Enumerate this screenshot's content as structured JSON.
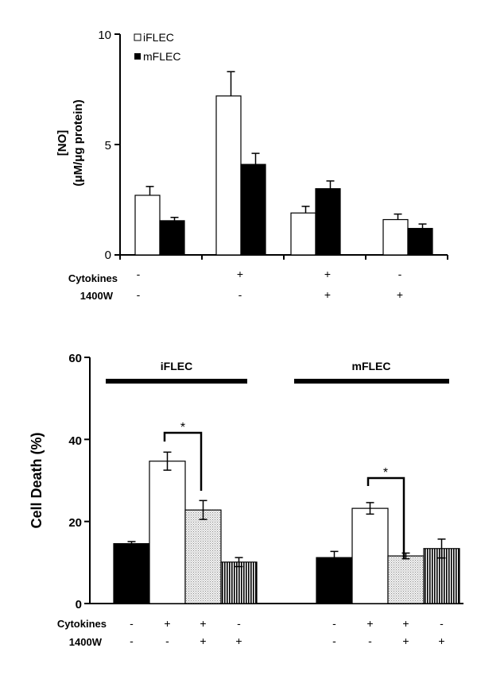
{
  "chart_data": [
    {
      "type": "bar",
      "ylabel": "[NO]",
      "ylabel_units": "(μM/μg protein)",
      "ylim": [
        0,
        10
      ],
      "yticks": [
        "0",
        "5",
        "10"
      ],
      "legend": {
        "placement": "top-left",
        "entries": [
          "iFLEC",
          "mFLEC"
        ]
      },
      "condition_labels": [
        "Cytokines",
        "1400W"
      ],
      "groups": [
        {
          "cytokines": "-",
          "w1400": "-"
        },
        {
          "cytokines": "+",
          "w1400": "-"
        },
        {
          "cytokines": "+",
          "w1400": "+"
        },
        {
          "cytokines": "-",
          "w1400": "+"
        }
      ],
      "series": [
        {
          "name": "iFLEC",
          "fill": "#ffffff",
          "values": [
            2.7,
            7.2,
            1.9,
            1.6
          ],
          "errors": [
            0.4,
            1.1,
            0.3,
            0.25
          ]
        },
        {
          "name": "mFLEC",
          "fill": "#000000",
          "values": [
            1.55,
            4.1,
            3.0,
            1.2
          ],
          "errors": [
            0.15,
            0.5,
            0.35,
            0.2
          ]
        }
      ],
      "grid": false
    },
    {
      "type": "bar",
      "ylabel": "Cell Death (%)",
      "ylim": [
        0,
        60
      ],
      "yticks": [
        "0",
        "20",
        "40",
        "60"
      ],
      "condition_labels": [
        "Cytokines",
        "1400W"
      ],
      "cells": [
        {
          "name": "iFLEC",
          "bars": [
            {
              "value": 14.6,
              "error": 0.5,
              "fill": "solid",
              "cytokines": "-",
              "w1400": "-"
            },
            {
              "value": 34.7,
              "error": 2.2,
              "fill": "white",
              "cytokines": "+",
              "w1400": "-"
            },
            {
              "value": 22.8,
              "error": 2.3,
              "fill": "dotted",
              "cytokines": "+",
              "w1400": "+"
            },
            {
              "value": 10.1,
              "error": 1.1,
              "fill": "striped",
              "cytokines": "-",
              "w1400": "+"
            }
          ],
          "significance": "*"
        },
        {
          "name": "mFLEC",
          "bars": [
            {
              "value": 11.2,
              "error": 1.5,
              "fill": "solid",
              "cytokines": "-",
              "w1400": "-"
            },
            {
              "value": 23.2,
              "error": 1.4,
              "fill": "white",
              "cytokines": "+",
              "w1400": "-"
            },
            {
              "value": 11.6,
              "error": 0.7,
              "fill": "dotted",
              "cytokines": "+",
              "w1400": "+"
            },
            {
              "value": 13.4,
              "error": 2.3,
              "fill": "striped",
              "cytokines": "-",
              "w1400": "+"
            }
          ],
          "significance": "*"
        }
      ],
      "grid": false
    }
  ]
}
